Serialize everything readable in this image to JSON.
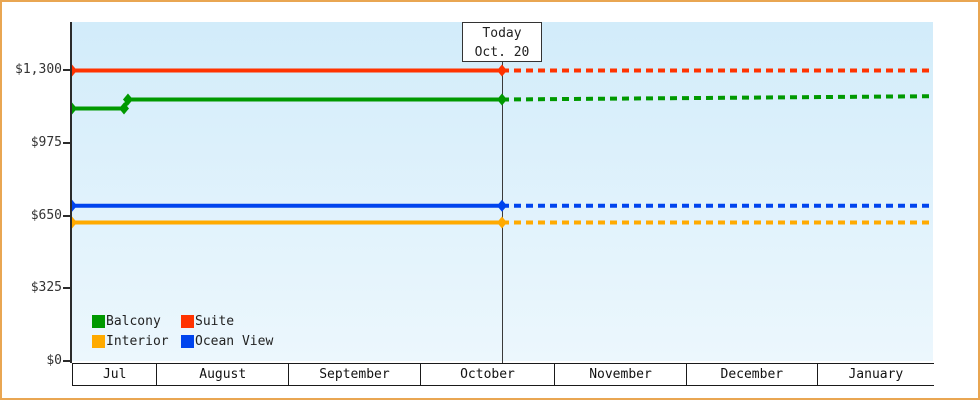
{
  "page": {
    "border_color": "#e9a652",
    "plot_bg_top": "#d2ecfa",
    "plot_bg_bottom": "#ecf7fd",
    "axis_color": "#2b2b2b"
  },
  "chart_data": {
    "type": "line",
    "title": "",
    "xlabel": "",
    "ylabel": "",
    "y_axis": {
      "max_display": 1517,
      "ticks": [
        {
          "value": 0,
          "label": "$0"
        },
        {
          "value": 325,
          "label": "$325"
        },
        {
          "value": 650,
          "label": "$650"
        },
        {
          "value": 975,
          "label": "$975"
        },
        {
          "value": 1300,
          "label": "$1,300"
        }
      ]
    },
    "x_axis": {
      "months": [
        "Jul",
        "August",
        "September",
        "October",
        "November",
        "December",
        "January"
      ],
      "boundaries_frac": [
        0,
        0.098,
        0.251,
        0.404,
        0.56,
        0.713,
        0.865,
        1.0
      ]
    },
    "today": {
      "label_line1": "Today",
      "label_line2": "Oct. 20",
      "frac": 0.4994
    },
    "series": [
      {
        "name": "Suite",
        "color": "#ff3300",
        "solid": [
          [
            0,
            1300
          ],
          [
            0.4994,
            1300
          ]
        ],
        "dashed": [
          [
            0.4994,
            1300
          ],
          [
            1,
            1300
          ]
        ],
        "markers": [
          [
            0,
            1300
          ],
          [
            0.4994,
            1300
          ]
        ]
      },
      {
        "name": "Balcony",
        "color": "#009900",
        "solid": [
          [
            0,
            1130
          ],
          [
            0.0604,
            1130
          ],
          [
            0.065,
            1170
          ],
          [
            0.4994,
            1170
          ]
        ],
        "dashed": [
          [
            0.4994,
            1170
          ],
          [
            1,
            1185
          ]
        ],
        "markers": [
          [
            0,
            1130
          ],
          [
            0.0604,
            1130
          ],
          [
            0.065,
            1170
          ],
          [
            0.4994,
            1170
          ]
        ]
      },
      {
        "name": "Ocean View",
        "color": "#0044ee",
        "solid": [
          [
            0,
            695
          ],
          [
            0.4994,
            695
          ]
        ],
        "dashed": [
          [
            0.4994,
            695
          ],
          [
            1,
            695
          ]
        ],
        "markers": [
          [
            0,
            695
          ],
          [
            0.4994,
            695
          ]
        ]
      },
      {
        "name": "Interior",
        "color": "#ffaa00",
        "solid": [
          [
            0,
            620
          ],
          [
            0.4994,
            620
          ]
        ],
        "dashed": [
          [
            0.4994,
            620
          ],
          [
            1,
            620
          ]
        ],
        "markers": [
          [
            0,
            620
          ],
          [
            0.4994,
            620
          ]
        ]
      }
    ],
    "legend": {
      "position": "bottom-left",
      "order": [
        "Balcony",
        "Suite",
        "Interior",
        "Ocean View"
      ]
    }
  }
}
